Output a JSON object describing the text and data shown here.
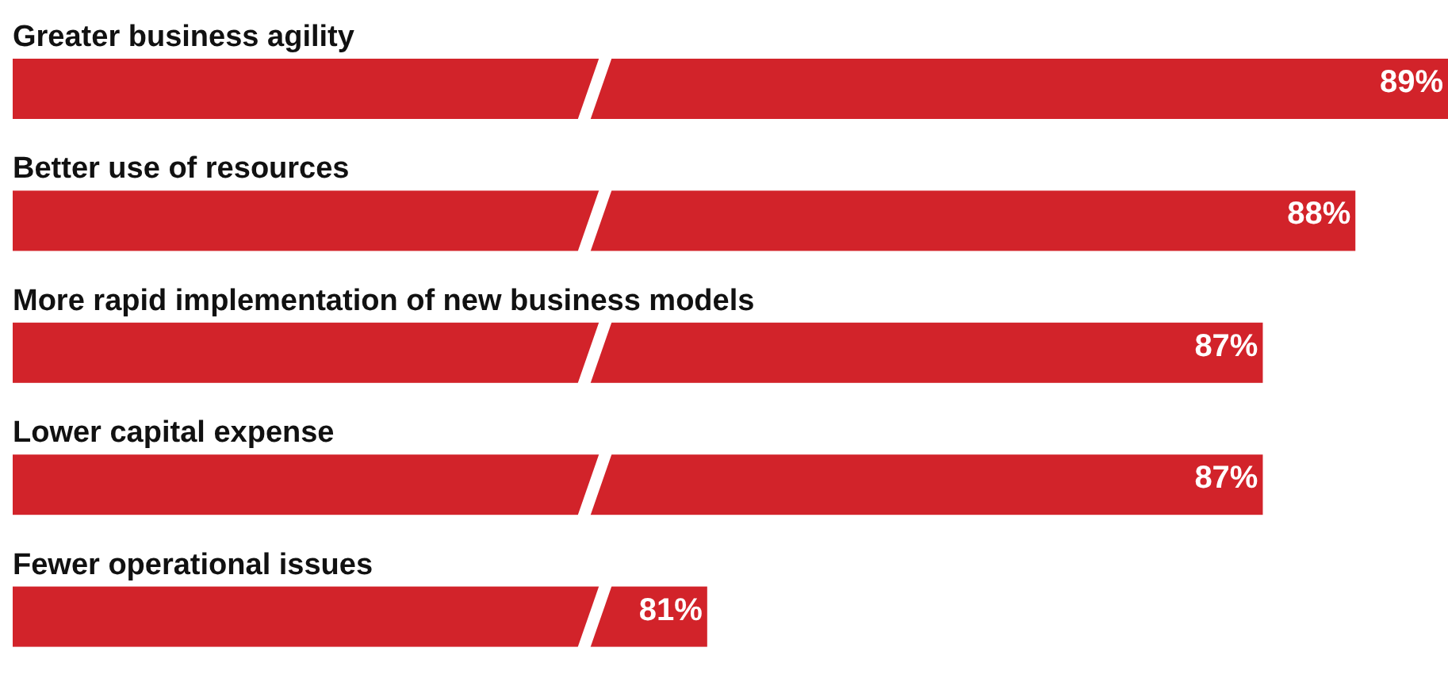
{
  "chart_data": {
    "type": "bar",
    "orientation": "horizontal",
    "categories": [
      "Greater business agility",
      "Better use of resources",
      "More rapid implementation of new business models",
      "Lower capital expense",
      "Fewer operational issues"
    ],
    "values": [
      89,
      88,
      87,
      87,
      81
    ],
    "color": "#d2232a",
    "xlim": [
      73.5,
      89
    ],
    "data_labels": true,
    "value_labels": [
      "89%",
      "88%",
      "87%",
      "87%",
      "81%"
    ]
  }
}
